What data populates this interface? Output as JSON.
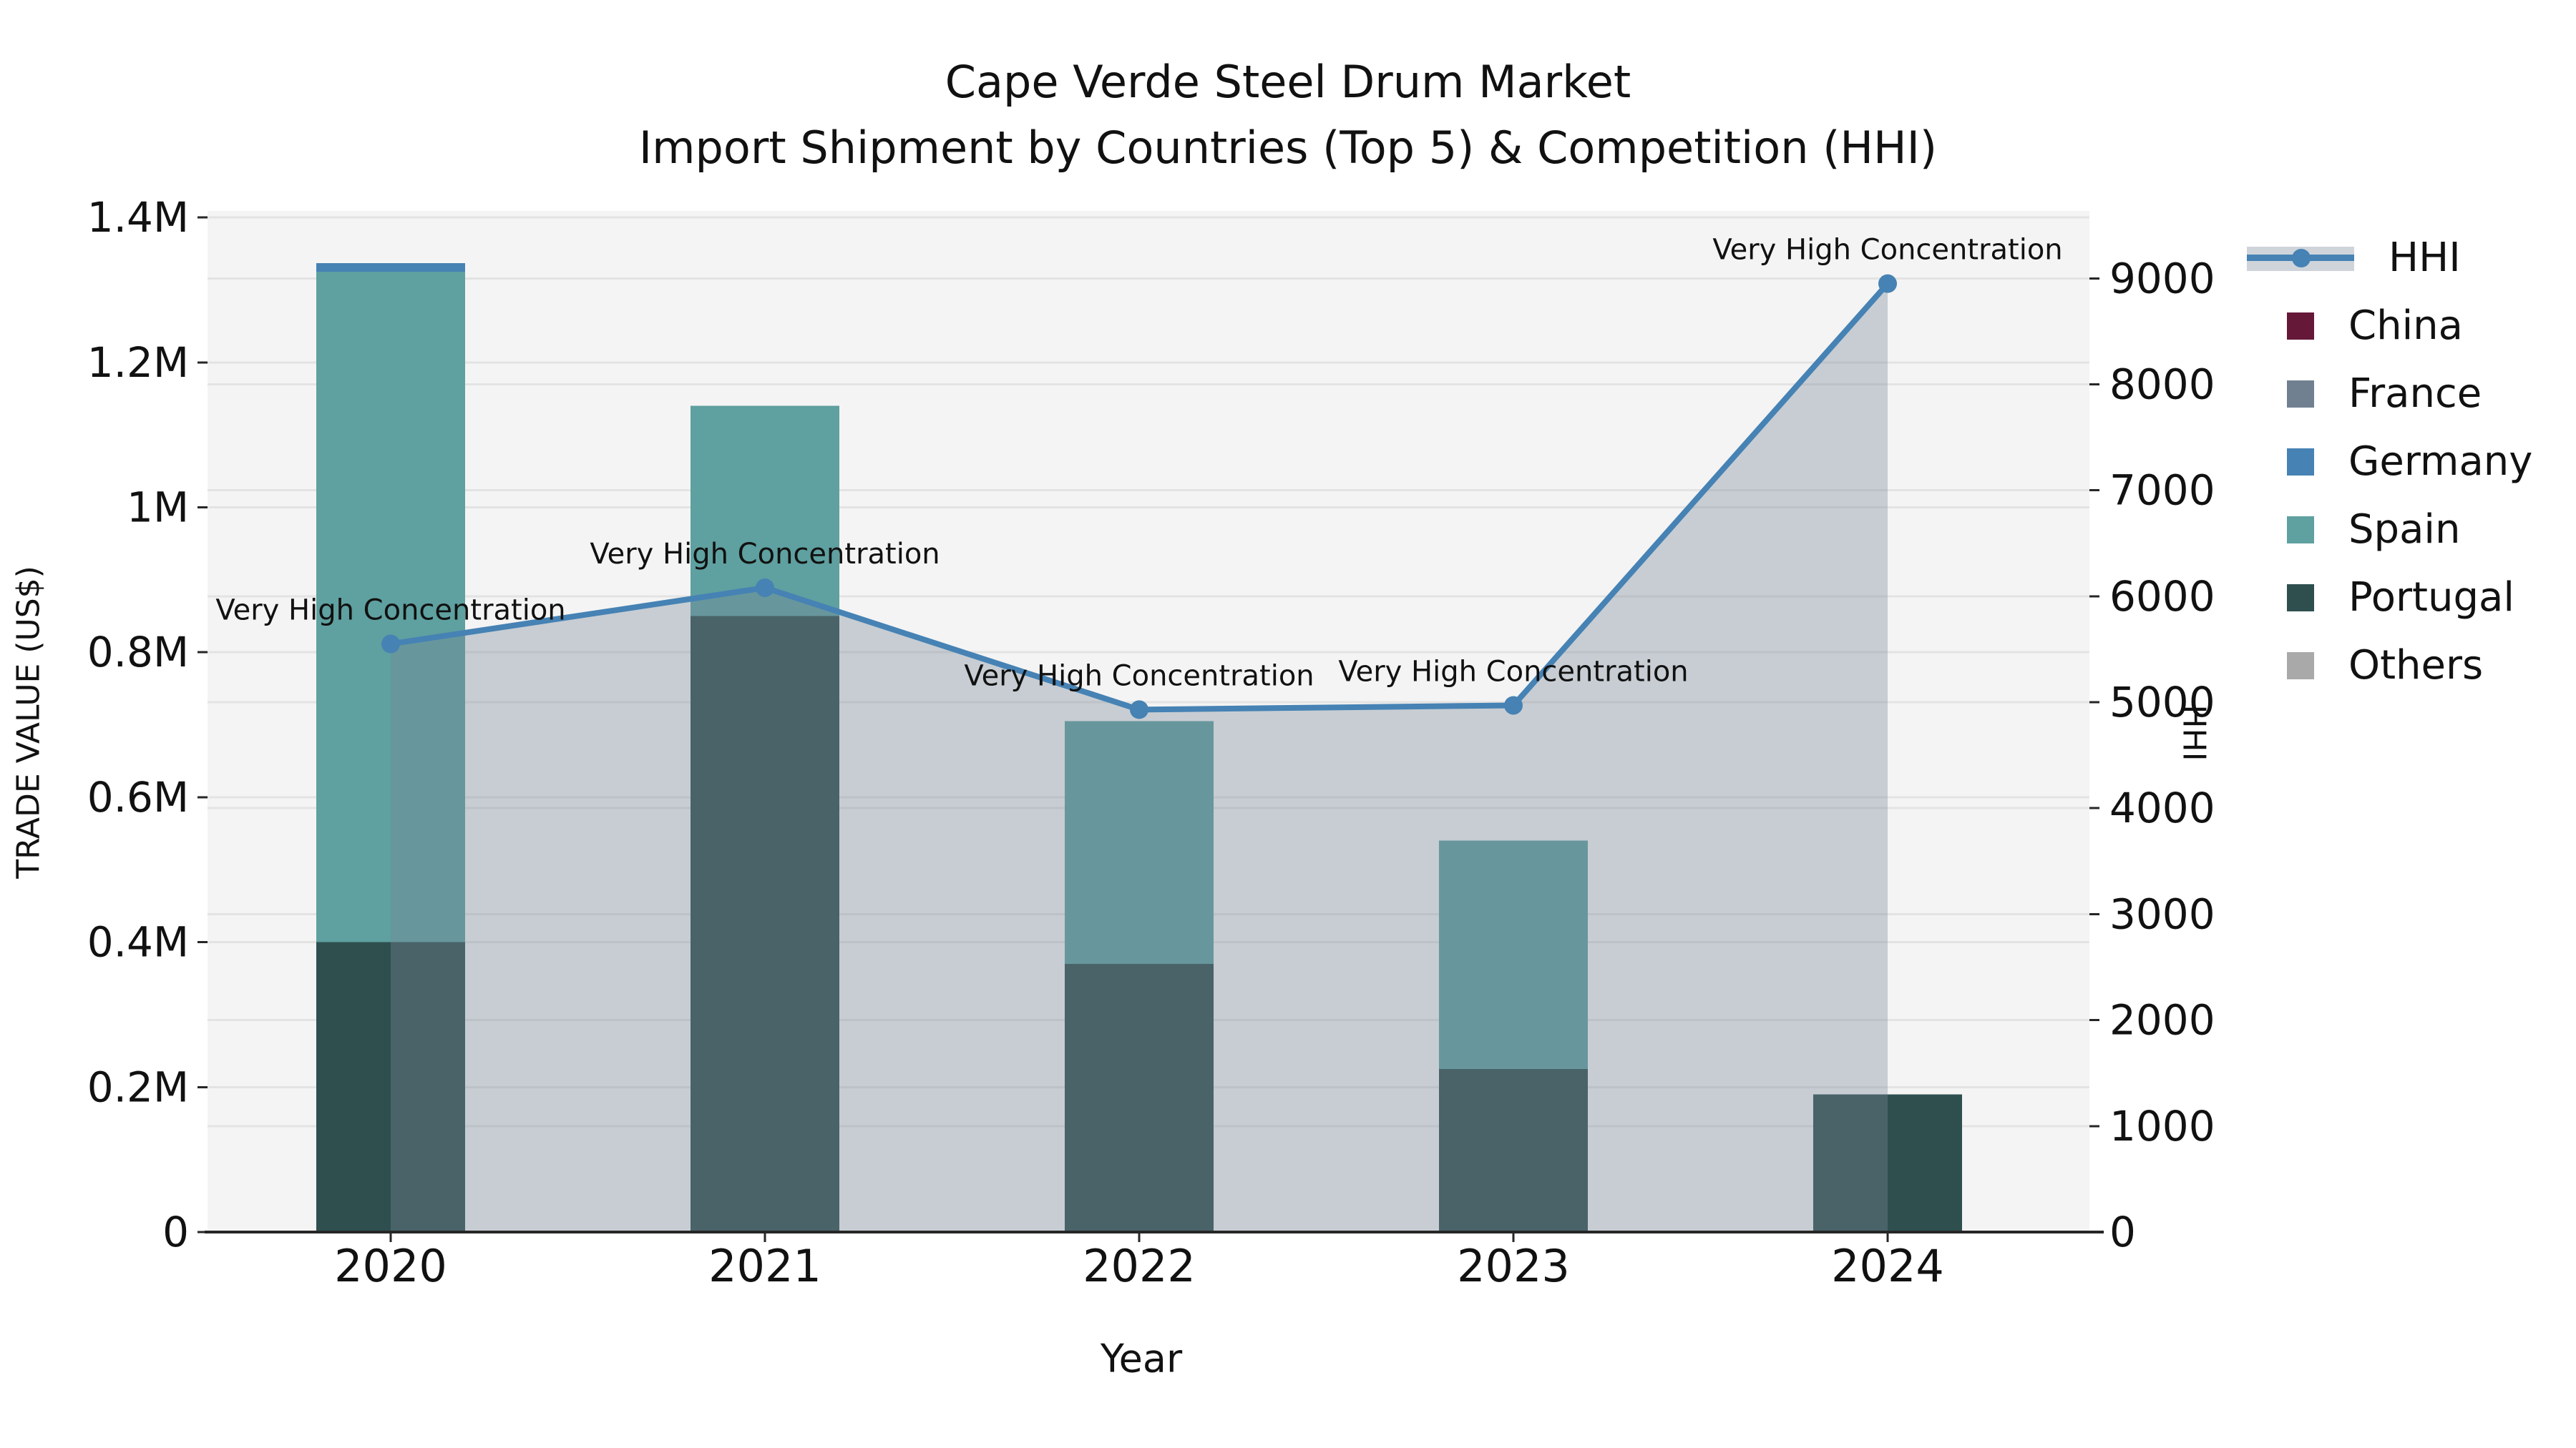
{
  "title": {
    "line1": "Cape Verde Steel Drum Market",
    "line2": "Import Shipment by Countries (Top 5) & Competition (HHI)"
  },
  "axes": {
    "x_title": "Year",
    "y_left_title": "TRADE VALUE (US$)",
    "y_right_title": "HHI",
    "y_left_tick_labels": [
      "0",
      "0.2M",
      "0.4M",
      "0.6M",
      "0.8M",
      "1M",
      "1.2M",
      "1.4M"
    ],
    "y_left_tick_values": [
      0,
      200000,
      400000,
      600000,
      800000,
      1000000,
      1200000,
      1400000
    ],
    "y_right_tick_labels": [
      "0",
      "1000",
      "2000",
      "3000",
      "4000",
      "5000",
      "6000",
      "7000",
      "8000",
      "9000"
    ],
    "y_right_tick_values": [
      0,
      1000,
      2000,
      3000,
      4000,
      5000,
      6000,
      7000,
      8000,
      9000
    ],
    "y_left_max": 1409000,
    "y_right_max": 9636,
    "grid": true
  },
  "chart_data": {
    "type": "combo-stacked-bar-line",
    "categories": [
      "2020",
      "2021",
      "2022",
      "2023",
      "2024"
    ],
    "bar_series": [
      {
        "name": "China",
        "color": "#651838",
        "values": [
          0,
          0,
          0,
          0,
          0
        ]
      },
      {
        "name": "France",
        "color": "#708090",
        "values": [
          0,
          0,
          0,
          0,
          0
        ]
      },
      {
        "name": "Germany",
        "color": "#4682B4",
        "values": [
          12000,
          0,
          0,
          0,
          0
        ]
      },
      {
        "name": "Spain",
        "color": "#5FA0A0",
        "values": [
          925000,
          290000,
          335000,
          315000,
          0
        ]
      },
      {
        "name": "Portugal",
        "color": "#2F4F4F",
        "values": [
          400000,
          850000,
          370000,
          225000,
          190000
        ]
      },
      {
        "name": "Others",
        "color": "#A9A9A9",
        "values": [
          0,
          0,
          0,
          0,
          0
        ]
      }
    ],
    "stack_order_bottom_to_top": [
      "Portugal",
      "Spain",
      "Germany",
      "France",
      "China",
      "Others"
    ],
    "line_series": {
      "name": "HHI",
      "color": "#4682B4",
      "area_color": "rgba(119,136,153,0.36)",
      "values": [
        5550,
        6080,
        4930,
        4970,
        8950
      ]
    },
    "annotations": [
      "Very High Concentration",
      "Very High Concentration",
      "Very High Concentration",
      "Very High Concentration",
      "Very High Concentration"
    ],
    "title": "Cape Verde Steel Drum Market — Import Shipment by Countries (Top 5) & Competition (HHI)",
    "xlabel": "Year",
    "ylabel_left": "TRADE VALUE (US$)",
    "ylabel_right": "HHI",
    "ylim_left": [
      0,
      1409000
    ],
    "ylim_right": [
      0,
      9636
    ],
    "legend_position": "right"
  },
  "legend": {
    "items": [
      {
        "label": "HHI",
        "type": "line",
        "color": "#4682B4"
      },
      {
        "label": "China",
        "type": "swatch",
        "color": "#651838"
      },
      {
        "label": "France",
        "type": "swatch",
        "color": "#708090"
      },
      {
        "label": "Germany",
        "type": "swatch",
        "color": "#4682B4"
      },
      {
        "label": "Spain",
        "type": "swatch",
        "color": "#5FA0A0"
      },
      {
        "label": "Portugal",
        "type": "swatch",
        "color": "#2F4F4F"
      },
      {
        "label": "Others",
        "type": "swatch",
        "color": "#A9A9A9"
      }
    ]
  },
  "colors": {
    "figure_background": "#ffffff",
    "plot_background": "#f4f4f4",
    "gridline": "#e3e3e3",
    "spine": "#262626",
    "text": "#111111",
    "hhi_line": "#4682B4",
    "hhi_area": "rgba(119,136,153,0.36)"
  }
}
